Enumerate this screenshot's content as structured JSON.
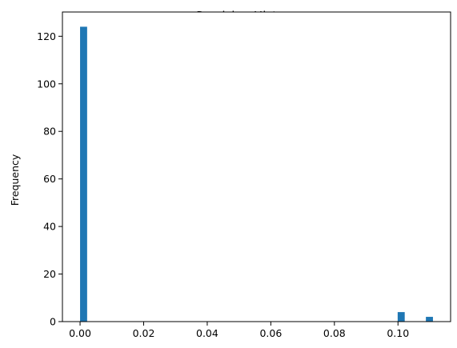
{
  "chart_data": {
    "type": "bar",
    "title": "Precision Histogram",
    "xlabel": "",
    "ylabel": "Frequency",
    "xlim": [
      -0.00555,
      0.11655
    ],
    "ylim": [
      0,
      130.2
    ],
    "bins": {
      "start": 0.0,
      "end": 0.111,
      "count": 50
    },
    "counts": [
      {
        "bin": 0,
        "value": 124
      },
      {
        "bin": 45,
        "value": 4
      },
      {
        "bin": 49,
        "value": 2
      }
    ],
    "x_ticks": [
      {
        "value": 0.0,
        "label": "0.00"
      },
      {
        "value": 0.02,
        "label": "0.02"
      },
      {
        "value": 0.04,
        "label": "0.04"
      },
      {
        "value": 0.06,
        "label": "0.06"
      },
      {
        "value": 0.08,
        "label": "0.08"
      },
      {
        "value": 0.1,
        "label": "0.10"
      }
    ],
    "y_ticks": [
      {
        "value": 0,
        "label": "0"
      },
      {
        "value": 20,
        "label": "20"
      },
      {
        "value": 40,
        "label": "40"
      },
      {
        "value": 60,
        "label": "60"
      },
      {
        "value": 80,
        "label": "80"
      },
      {
        "value": 100,
        "label": "100"
      },
      {
        "value": 120,
        "label": "120"
      }
    ],
    "bar_color": "#1f77b4",
    "grid": false,
    "legend": "none"
  }
}
